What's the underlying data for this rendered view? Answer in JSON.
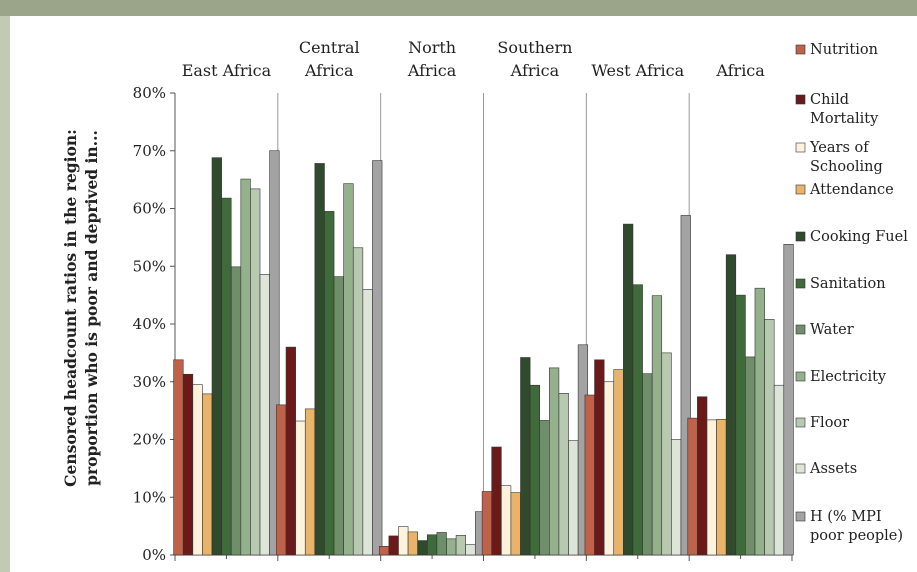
{
  "chart_data": {
    "type": "bar",
    "ylabel_line1": "Censored headcount ratios in the region:",
    "ylabel_line2": "proportion who is poor and deprived in...",
    "ylim": [
      0,
      80
    ],
    "yticks": [
      "0%",
      "10%",
      "20%",
      "30%",
      "40%",
      "50%",
      "60%",
      "70%",
      "80%"
    ],
    "grid": false,
    "legend_position": "right",
    "categories": [
      {
        "line1": "",
        "line2": "East Africa"
      },
      {
        "line1": "Central",
        "line2": "Africa"
      },
      {
        "line1": "North",
        "line2": "Africa"
      },
      {
        "line1": "Southern",
        "line2": "Africa"
      },
      {
        "line1": "",
        "line2": "West Africa"
      },
      {
        "line1": "",
        "line2": "Africa"
      }
    ],
    "series": [
      {
        "name": "Nutrition",
        "label_lines": [
          "Nutrition"
        ],
        "color": "#c0614a",
        "values": [
          33.8,
          26.0,
          1.5,
          11.0,
          27.7,
          23.7
        ]
      },
      {
        "name": "Child Mortality",
        "label_lines": [
          "Child",
          "Mortality"
        ],
        "color": "#6b1a1a",
        "values": [
          31.3,
          36.0,
          3.3,
          18.7,
          33.8,
          27.4
        ]
      },
      {
        "name": "Years of Schooling",
        "label_lines": [
          "Years of",
          "Schooling"
        ],
        "color": "#fdf3dc",
        "values": [
          29.5,
          23.2,
          4.9,
          12.0,
          30.0,
          23.4
        ]
      },
      {
        "name": "Attendance",
        "label_lines": [
          "Attendance"
        ],
        "color": "#e8b46a",
        "values": [
          27.9,
          25.3,
          4.0,
          10.8,
          32.1,
          23.5
        ]
      },
      {
        "name": "Cooking Fuel",
        "label_lines": [
          "Cooking Fuel"
        ],
        "color": "#2f4a2c",
        "values": [
          68.8,
          67.8,
          2.5,
          34.2,
          57.3,
          52.0
        ]
      },
      {
        "name": "Sanitation",
        "label_lines": [
          "Sanitation"
        ],
        "color": "#3f6b3a",
        "values": [
          61.8,
          59.5,
          3.5,
          29.4,
          46.8,
          45.0
        ]
      },
      {
        "name": "Water",
        "label_lines": [
          "Water"
        ],
        "color": "#6f8f6a",
        "values": [
          49.9,
          48.2,
          3.9,
          23.3,
          31.4,
          34.3
        ]
      },
      {
        "name": "Electricity",
        "label_lines": [
          "Electricity"
        ],
        "color": "#95b08d",
        "values": [
          65.1,
          64.3,
          2.8,
          32.4,
          44.9,
          46.2
        ]
      },
      {
        "name": "Floor",
        "label_lines": [
          "Floor"
        ],
        "color": "#b8c9b1",
        "values": [
          63.4,
          53.2,
          3.4,
          28.0,
          35.0,
          40.8
        ]
      },
      {
        "name": "Assets",
        "label_lines": [
          "Assets"
        ],
        "color": "#dde5d8",
        "values": [
          48.6,
          46.0,
          1.8,
          19.8,
          20.0,
          29.4
        ]
      },
      {
        "name": "H (% MPI poor people)",
        "label_lines": [
          "H (% MPI",
          "poor people)"
        ],
        "color": "#a3a3a3",
        "values": [
          70.0,
          68.3,
          7.5,
          36.4,
          58.8,
          53.8
        ]
      }
    ]
  }
}
